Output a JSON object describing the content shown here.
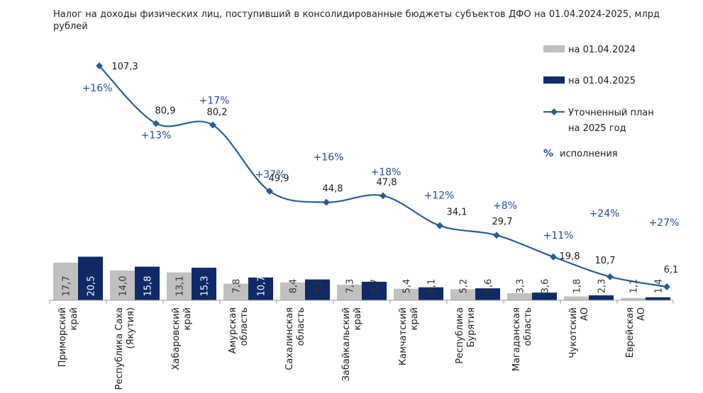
{
  "chart_data": {
    "type": "bar",
    "title": "Налог на доходы физических лиц, поступивший в консолидированные бюджеты субъектов ДФО на 01.04.2024-2025, млрд рублей",
    "categories": [
      [
        "Приморский",
        "край"
      ],
      [
        "Республика Саха",
        "(Якутия)"
      ],
      [
        "Хабаровский",
        "край"
      ],
      [
        "Амурская",
        "область"
      ],
      [
        "Сахалинская",
        "область"
      ],
      [
        "Забайкальский",
        "край"
      ],
      [
        "Камчатский",
        "край"
      ],
      [
        "Республика",
        "Бурятия"
      ],
      [
        "Магаданская",
        "область"
      ],
      [
        "Чукотский",
        "АО"
      ],
      [
        "Еврейская",
        "АО"
      ]
    ],
    "series": [
      {
        "name": "на 01.04.2024",
        "type": "bar",
        "color": "#c0c0c0",
        "values": [
          17.7,
          14.0,
          13.1,
          7.8,
          8.4,
          7.3,
          5.4,
          5.2,
          3.3,
          1.8,
          1.1
        ],
        "labels": [
          "17,7",
          "14,0",
          "13,1",
          "7,8",
          "8,4",
          "7,3",
          "5,4",
          "5,2",
          "3,3",
          "1,8",
          "1,1"
        ]
      },
      {
        "name": "на 01.04.2025",
        "type": "bar",
        "color": "#0f2a66",
        "values": [
          20.5,
          15.8,
          15.3,
          10.7,
          9.8,
          8.7,
          6.1,
          5.6,
          3.6,
          2.3,
          1.4
        ],
        "labels": [
          "20,5",
          "15,8",
          "15,3",
          "10,7",
          "9,8",
          "8,7",
          "6,1",
          "5,6",
          "3,6",
          "2,3",
          "1,4"
        ]
      },
      {
        "name": "Уточненный план на 2025 год",
        "type": "line",
        "color": "#2a5d8f",
        "values": [
          107.3,
          80.9,
          80.2,
          49.9,
          44.8,
          47.8,
          34.1,
          29.7,
          19.8,
          10.7,
          6.1
        ],
        "labels": [
          "107,3",
          "80,9",
          "80,2",
          "49,9",
          "44,8",
          "47,8",
          "34,1",
          "29,7",
          "19,8",
          "10,7",
          "6,1"
        ]
      }
    ],
    "percent_execution": [
      "+16%",
      "+13%",
      "+17%",
      "+37%",
      "+16%",
      "+18%",
      "+12%",
      "+8%",
      "+11%",
      "+24%",
      "+27%"
    ],
    "legend": {
      "items": [
        "на 01.04.2024",
        "на 01.04.2025",
        [
          "Уточненный план",
          "на 2025 год"
        ]
      ],
      "percent_symbol": "%",
      "percent_text": "исполнения",
      "position": "top-right"
    },
    "grid": false
  }
}
